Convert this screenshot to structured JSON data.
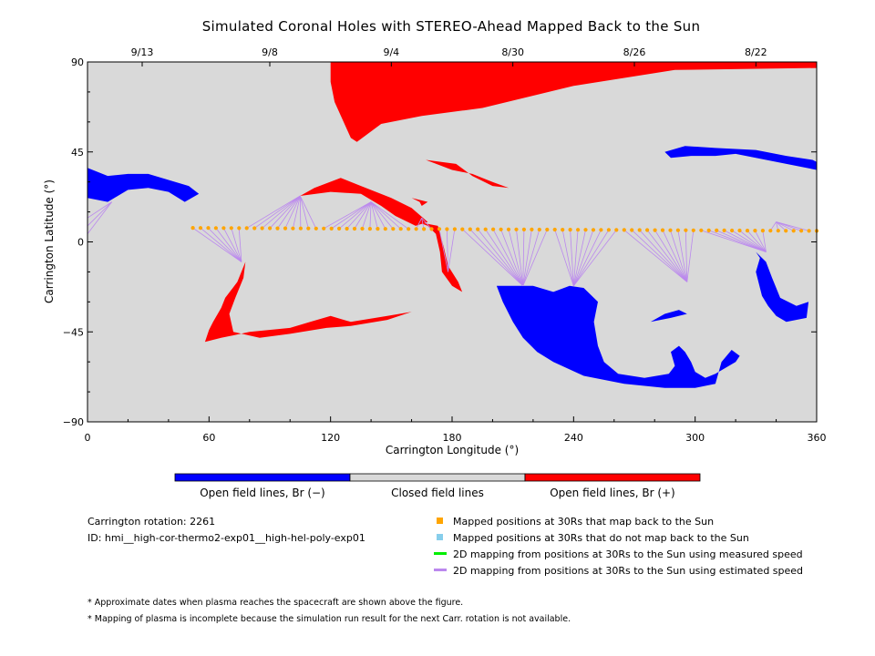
{
  "title": "Simulated Coronal Holes with STEREO-Ahead Mapped Back to the Sun",
  "chart_data": {
    "type": "map",
    "xlabel": "Carrington Longitude (°)",
    "ylabel": "Carrington Latitude (°)",
    "xlim": [
      0,
      360
    ],
    "ylim": [
      -90,
      90
    ],
    "x_ticks": [
      0,
      60,
      120,
      180,
      240,
      300,
      360
    ],
    "y_ticks": [
      -90,
      -45,
      0,
      45,
      90
    ],
    "x_tick_labels": [
      "0",
      "60",
      "120",
      "180",
      "240",
      "300",
      "360"
    ],
    "y_tick_labels": [
      "−90",
      "−45",
      "0",
      "45",
      "90"
    ],
    "top_date_labels": [
      {
        "lon": 27,
        "label": "9/13"
      },
      {
        "lon": 90,
        "label": "9/8"
      },
      {
        "lon": 150,
        "label": "9/4"
      },
      {
        "lon": 210,
        "label": "8/30"
      },
      {
        "lon": 270,
        "label": "8/26"
      },
      {
        "lon": 330,
        "label": "8/22"
      }
    ],
    "colors": {
      "background": "#d9d9d9",
      "open_negative": "#0000ff",
      "open_positive": "#ff0000",
      "mapped_point": "#ffa500",
      "not_mapped_point": "#87ceeb",
      "measured_line": "#00ee00",
      "estimated_line": "#bb88ee"
    },
    "mapped_track": {
      "lon_start": 52,
      "lon_end": 360,
      "lat_start": 7,
      "lat_end": 5.5,
      "count": 82
    },
    "holes_positive": [
      [
        [
          120,
          90
        ],
        [
          360,
          90
        ],
        [
          360,
          87
        ],
        [
          290,
          86
        ],
        [
          240,
          78
        ],
        [
          195,
          67
        ],
        [
          165,
          63
        ],
        [
          145,
          59
        ],
        [
          133,
          50
        ],
        [
          130,
          52
        ],
        [
          122,
          70
        ],
        [
          120,
          80
        ]
      ],
      [
        [
          105,
          23
        ],
        [
          112,
          27
        ],
        [
          125,
          32
        ],
        [
          135,
          28
        ],
        [
          150,
          22
        ],
        [
          160,
          17
        ],
        [
          168,
          10
        ],
        [
          162,
          8
        ],
        [
          152,
          13
        ],
        [
          145,
          18
        ],
        [
          135,
          24
        ],
        [
          120,
          25
        ]
      ],
      [
        [
          167,
          41
        ],
        [
          182,
          39
        ],
        [
          190,
          33
        ],
        [
          200,
          28
        ],
        [
          208,
          27
        ],
        [
          200,
          30
        ],
        [
          190,
          34
        ],
        [
          180,
          36
        ]
      ],
      [
        [
          160,
          22
        ],
        [
          164,
          20
        ],
        [
          165,
          18
        ],
        [
          168,
          20
        ]
      ],
      [
        [
          163,
          10
        ],
        [
          168,
          8
        ],
        [
          172,
          4
        ],
        [
          174,
          -5
        ],
        [
          175,
          -15
        ],
        [
          180,
          -22
        ],
        [
          185,
          -25
        ],
        [
          183,
          -20
        ],
        [
          178,
          -12
        ],
        [
          176,
          -3
        ],
        [
          173,
          8
        ]
      ],
      [
        [
          78,
          -10
        ],
        [
          74,
          -20
        ],
        [
          68,
          -28
        ],
        [
          66,
          -33
        ],
        [
          62,
          -40
        ],
        [
          60,
          -44
        ],
        [
          58,
          -50
        ],
        [
          66,
          -48
        ],
        [
          80,
          -45
        ],
        [
          100,
          -43
        ],
        [
          110,
          -40
        ],
        [
          120,
          -37
        ],
        [
          130,
          -40
        ],
        [
          148,
          -37
        ],
        [
          160,
          -35
        ],
        [
          148,
          -39
        ],
        [
          130,
          -42
        ],
        [
          118,
          -43
        ],
        [
          100,
          -46
        ],
        [
          85,
          -48
        ],
        [
          72,
          -45
        ],
        [
          70,
          -36
        ],
        [
          73,
          -28
        ],
        [
          77,
          -18
        ]
      ]
    ],
    "holes_negative": [
      [
        [
          0,
          37
        ],
        [
          10,
          33
        ],
        [
          20,
          34
        ],
        [
          30,
          34
        ],
        [
          40,
          31
        ],
        [
          50,
          28
        ],
        [
          55,
          24
        ],
        [
          48,
          20
        ],
        [
          40,
          25
        ],
        [
          30,
          27
        ],
        [
          20,
          26
        ],
        [
          10,
          20
        ],
        [
          0,
          22
        ]
      ],
      [
        [
          285,
          45
        ],
        [
          295,
          48
        ],
        [
          310,
          47
        ],
        [
          330,
          46
        ],
        [
          345,
          43
        ],
        [
          358,
          41
        ],
        [
          360,
          40
        ],
        [
          360,
          36
        ],
        [
          345,
          39
        ],
        [
          330,
          42
        ],
        [
          320,
          44
        ],
        [
          310,
          43
        ],
        [
          298,
          43
        ],
        [
          288,
          42
        ]
      ],
      [
        [
          202,
          -22
        ],
        [
          205,
          -30
        ],
        [
          210,
          -40
        ],
        [
          215,
          -48
        ],
        [
          222,
          -55
        ],
        [
          230,
          -60
        ],
        [
          245,
          -67
        ],
        [
          265,
          -71
        ],
        [
          285,
          -73
        ],
        [
          300,
          -73
        ],
        [
          310,
          -71
        ],
        [
          313,
          -60
        ],
        [
          318,
          -54
        ],
        [
          322,
          -57
        ],
        [
          320,
          -60
        ],
        [
          315,
          -63
        ],
        [
          310,
          -66
        ],
        [
          305,
          -68
        ],
        [
          300,
          -65
        ],
        [
          298,
          -60
        ],
        [
          295,
          -55
        ],
        [
          292,
          -52
        ],
        [
          288,
          -55
        ],
        [
          290,
          -62
        ],
        [
          287,
          -66
        ],
        [
          275,
          -68
        ],
        [
          262,
          -66
        ],
        [
          255,
          -60
        ],
        [
          252,
          -52
        ],
        [
          250,
          -40
        ],
        [
          252,
          -30
        ],
        [
          245,
          -23
        ],
        [
          238,
          -22
        ],
        [
          230,
          -25
        ],
        [
          220,
          -22
        ],
        [
          210,
          -22
        ]
      ],
      [
        [
          278,
          -40
        ],
        [
          288,
          -38
        ],
        [
          296,
          -36
        ],
        [
          292,
          -34
        ],
        [
          285,
          -36
        ]
      ],
      [
        [
          330,
          -5
        ],
        [
          335,
          -10
        ],
        [
          338,
          -18
        ],
        [
          340,
          -23
        ],
        [
          342,
          -28
        ],
        [
          350,
          -32
        ],
        [
          356,
          -30
        ],
        [
          355,
          -38
        ],
        [
          345,
          -40
        ],
        [
          340,
          -37
        ],
        [
          336,
          -32
        ],
        [
          333,
          -27
        ],
        [
          330,
          -15
        ],
        [
          332,
          -8
        ]
      ]
    ]
  },
  "colorbar": {
    "left_label": "Open field lines, Br (−)",
    "mid_label": "Closed field lines",
    "right_label": "Open field lines, Br (+)",
    "colors": [
      "#0000ff",
      "#d9d9d9",
      "#ff0000"
    ]
  },
  "info": {
    "rotation": "Carrington rotation: 2261",
    "run_id": "ID: hmi__high-cor-thermo2-exp01__high-hel-poly-exp01"
  },
  "legend": [
    {
      "label": "Mapped positions at 30Rs that map back to the Sun",
      "color": "#ffa500",
      "kind": "square"
    },
    {
      "label": "Mapped positions at 30Rs that do not map back to the Sun",
      "color": "#87ceeb",
      "kind": "square"
    },
    {
      "label": "2D mapping from positions at 30Rs to the Sun using measured speed",
      "color": "#00ee00",
      "kind": "line"
    },
    {
      "label": "2D mapping from positions at 30Rs to the Sun using estimated speed",
      "color": "#bb88ee",
      "kind": "line"
    }
  ],
  "notes": [
    "* Approximate dates when plasma reaches the spacecraft are shown above the figure.",
    "* Mapping of plasma is incomplete because the simulation run result for the next Carr. rotation is not available."
  ]
}
